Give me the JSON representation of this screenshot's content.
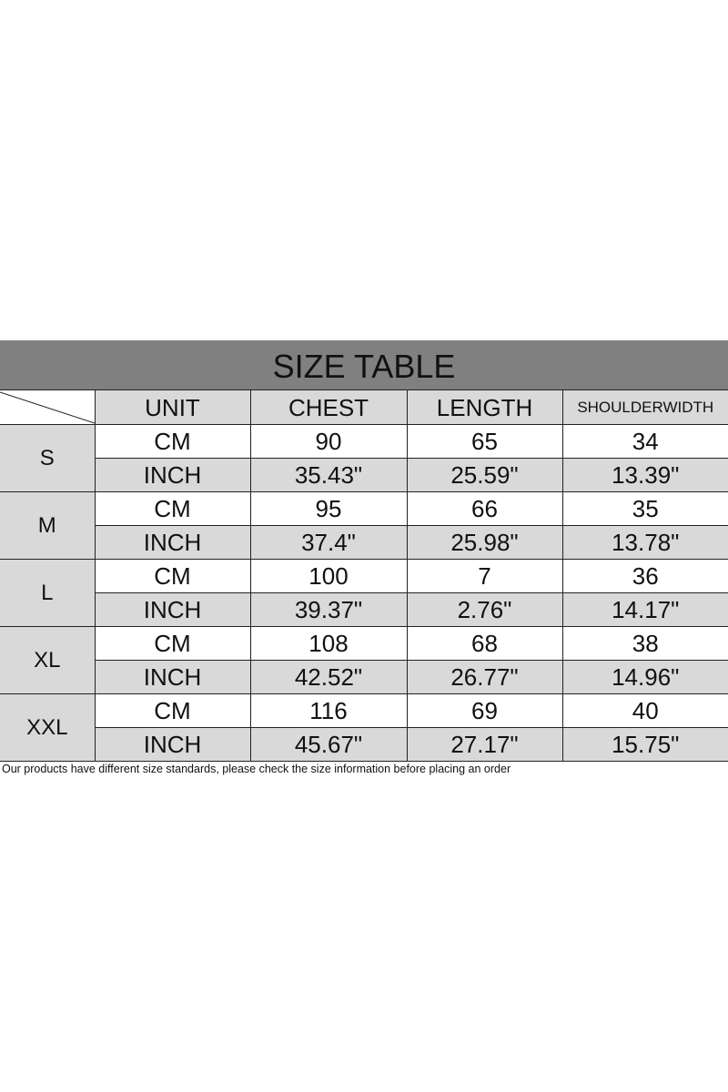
{
  "title": "SIZE TABLE",
  "headers": [
    "UNIT",
    "CHEST",
    "LENGTH",
    "SHOULDERWIDTH"
  ],
  "rows": [
    {
      "size": "S",
      "cm": {
        "unit": "CM",
        "chest": "90",
        "length": "65",
        "shoulder": "34"
      },
      "inch": {
        "unit": "INCH",
        "chest": "35.43\"",
        "length": "25.59\"",
        "shoulder": "13.39\""
      }
    },
    {
      "size": "M",
      "cm": {
        "unit": "CM",
        "chest": "95",
        "length": "66",
        "shoulder": "35"
      },
      "inch": {
        "unit": "INCH",
        "chest": "37.4\"",
        "length": "25.98\"",
        "shoulder": "13.78\""
      }
    },
    {
      "size": "L",
      "cm": {
        "unit": "CM",
        "chest": "100",
        "length": "7",
        "shoulder": "36"
      },
      "inch": {
        "unit": "INCH",
        "chest": "39.37\"",
        "length": "2.76\"",
        "shoulder": "14.17\""
      }
    },
    {
      "size": "XL",
      "cm": {
        "unit": "CM",
        "chest": "108",
        "length": "68",
        "shoulder": "38"
      },
      "inch": {
        "unit": "INCH",
        "chest": "42.52\"",
        "length": "26.77\"",
        "shoulder": "14.96\""
      }
    },
    {
      "size": "XXL",
      "cm": {
        "unit": "CM",
        "chest": "116",
        "length": "69",
        "shoulder": "40"
      },
      "inch": {
        "unit": "INCH",
        "chest": "45.67\"",
        "length": "27.17\"",
        "shoulder": "15.75\""
      }
    }
  ],
  "note": "Our products have different size standards, please check the size information before placing an order"
}
